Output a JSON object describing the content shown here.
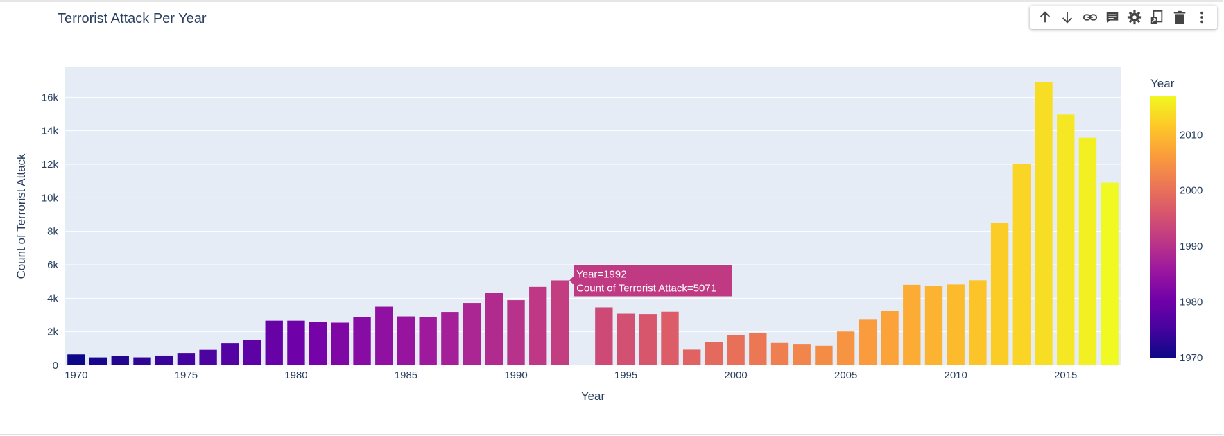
{
  "toolbar": {
    "icons": [
      "arrow-up-icon",
      "arrow-down-icon",
      "link-icon",
      "comment-icon",
      "gear-icon",
      "export-icon",
      "trash-icon",
      "more-vertical-icon"
    ]
  },
  "chart_data": {
    "type": "bar",
    "title": "Terrorist Attack Per Year",
    "xlabel": "Year",
    "ylabel": "Count of Terrorist Attack",
    "x": [
      1970,
      1971,
      1972,
      1973,
      1974,
      1975,
      1976,
      1977,
      1978,
      1979,
      1980,
      1981,
      1982,
      1983,
      1984,
      1985,
      1986,
      1987,
      1988,
      1989,
      1990,
      1991,
      1992,
      1994,
      1995,
      1996,
      1997,
      1998,
      1999,
      2000,
      2001,
      2002,
      2003,
      2004,
      2005,
      2006,
      2007,
      2008,
      2009,
      2010,
      2011,
      2012,
      2013,
      2014,
      2015,
      2016,
      2017
    ],
    "values": [
      651,
      471,
      568,
      473,
      581,
      740,
      923,
      1319,
      1526,
      2662,
      2662,
      2586,
      2544,
      2870,
      3495,
      2915,
      2860,
      3183,
      3721,
      4324,
      3887,
      4683,
      5071,
      3456,
      3081,
      3058,
      3197,
      934,
      1395,
      1814,
      1906,
      1333,
      1278,
      1166,
      2017,
      2758,
      3242,
      4805,
      4721,
      4826,
      5076,
      8522,
      12036,
      16903,
      14965,
      13587,
      10900
    ],
    "xticks": [
      1970,
      1975,
      1980,
      1985,
      1990,
      1995,
      2000,
      2005,
      2010,
      2015
    ],
    "xtick_labels": [
      "1970",
      "1975",
      "1980",
      "1985",
      "1990",
      "1995",
      "2000",
      "2005",
      "2010",
      "2015"
    ],
    "yticks": [
      0,
      2000,
      4000,
      6000,
      8000,
      10000,
      12000,
      14000,
      16000
    ],
    "ytick_labels": [
      "0",
      "2k",
      "4k",
      "6k",
      "8k",
      "10k",
      "12k",
      "14k",
      "16k"
    ],
    "xlim": [
      1969.5,
      2017.5
    ],
    "ylim": [
      0,
      17793
    ],
    "grid": true,
    "colorbar": {
      "title": "Year",
      "range": [
        1970,
        2017
      ],
      "ticks": [
        1970,
        1980,
        1990,
        2000,
        2010
      ],
      "tick_labels": [
        "1970",
        "1980",
        "1990",
        "2000",
        "2010"
      ],
      "colorscale": [
        "#0d0887",
        "#46039f",
        "#7201a8",
        "#9c179e",
        "#bd3786",
        "#d8576b",
        "#ed7953",
        "#fb9f3a",
        "#fdca26",
        "#f0f921"
      ]
    },
    "plot_background": "#e5ecf6",
    "tooltip": {
      "year": 1992,
      "line1": "Year=1992",
      "line2": "Count of Terrorist Attack=5071",
      "color": "#c03a83"
    }
  }
}
